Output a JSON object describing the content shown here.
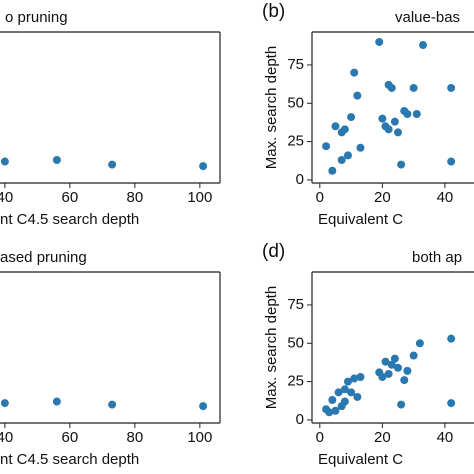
{
  "chart_data": [
    {
      "type": "scatter",
      "panel": "",
      "title": "o pruning",
      "xlabel": "nt C4.5 search depth",
      "x": [
        40,
        56,
        73,
        101
      ],
      "y": [
        12,
        13,
        10,
        9
      ],
      "color": "#2a78b0",
      "xlim": [
        38.5,
        106.2
      ],
      "ylim": [
        -2,
        96.5
      ],
      "xticks": [
        40,
        60,
        80,
        100
      ]
    },
    {
      "type": "scatter",
      "panel": "(b)",
      "title": "value-bas",
      "xlabel": "Equivalent C",
      "ylabel": "Max. search depth",
      "x": [
        2,
        4,
        5,
        7,
        7,
        8,
        9,
        10,
        11,
        12,
        13,
        19,
        20,
        21,
        22,
        22,
        23,
        24,
        25,
        26,
        27,
        28,
        30,
        31,
        33,
        42,
        42
      ],
      "y": [
        22,
        6,
        35,
        31,
        13,
        33,
        16,
        41,
        70,
        55,
        21,
        90,
        40,
        35,
        62,
        33,
        60,
        38,
        31,
        10,
        45,
        43,
        60,
        43,
        88,
        60,
        12
      ],
      "color": "#2a78b0",
      "xlim": [
        -2.5,
        49.3
      ],
      "ylim": [
        -2,
        96.5
      ],
      "xticks": [
        0,
        20,
        40
      ],
      "yticks": [
        0,
        25,
        50,
        75
      ]
    },
    {
      "type": "scatter",
      "panel": "",
      "title": "ased pruning",
      "xlabel": "nt C4.5 search depth",
      "x": [
        40,
        56,
        73,
        101
      ],
      "y": [
        11,
        12,
        10,
        9
      ],
      "color": "#2a78b0",
      "xlim": [
        38.5,
        106.2
      ],
      "ylim": [
        -2,
        96.5
      ],
      "xticks": [
        40,
        60,
        80,
        100
      ]
    },
    {
      "type": "scatter",
      "panel": "(d)",
      "title": "both ap",
      "xlabel": "Equivalent C",
      "ylabel": "Max. search depth",
      "x": [
        2,
        3,
        4,
        5,
        6,
        7,
        8,
        8,
        9,
        10,
        11,
        12,
        13,
        19,
        20,
        21,
        22,
        23,
        24,
        25,
        26,
        27,
        28,
        30,
        32,
        42,
        42
      ],
      "y": [
        7,
        5,
        13,
        6,
        18,
        9,
        20,
        12,
        25,
        18,
        27,
        15,
        28,
        31,
        28,
        38,
        30,
        36,
        40,
        34,
        10,
        26,
        32,
        42,
        50,
        53,
        11
      ],
      "color": "#2a78b0",
      "xlim": [
        -2.5,
        49.3
      ],
      "ylim": [
        -2,
        96.5
      ],
      "xticks": [
        0,
        20,
        40
      ],
      "yticks": [
        0,
        25,
        50,
        75
      ]
    }
  ]
}
